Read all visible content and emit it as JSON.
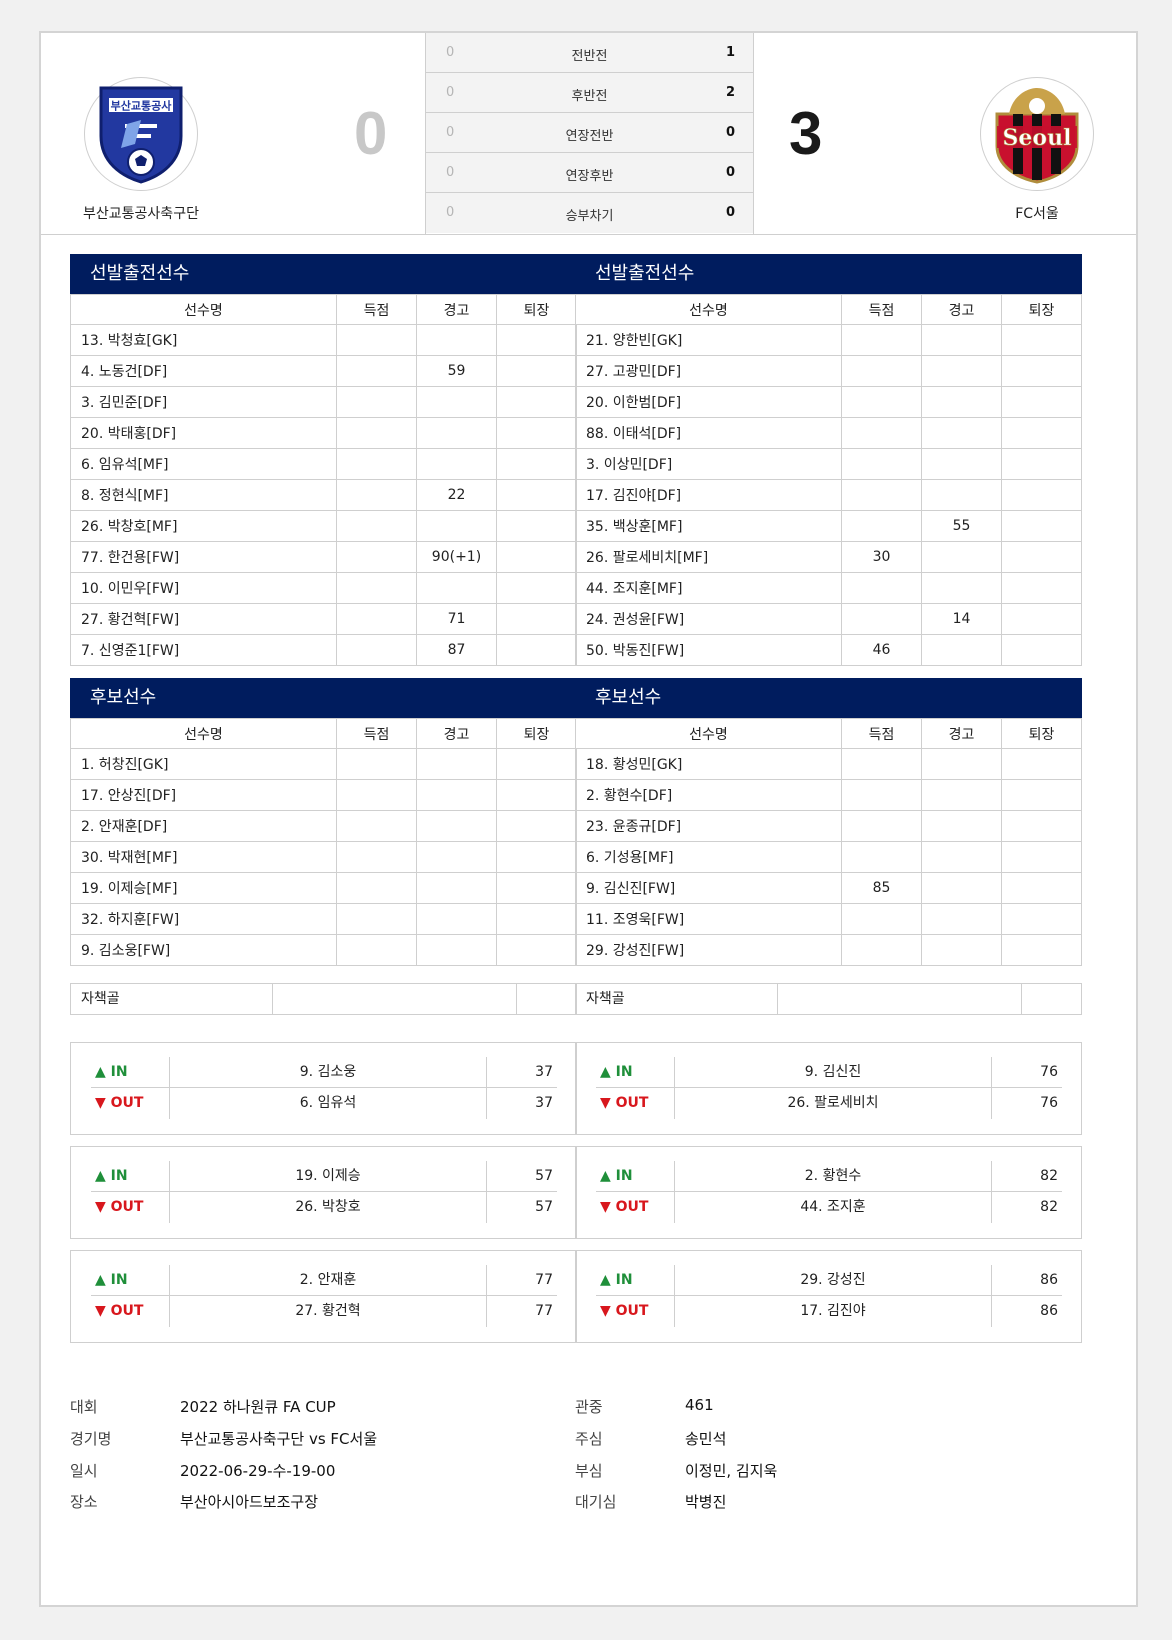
{
  "match": {
    "home": {
      "name": "부산교통공사축구단",
      "score": "0",
      "logo_text": "부산교통공사"
    },
    "away": {
      "name": "FC서울",
      "score": "3",
      "logo_text": "Seoul"
    },
    "periods": [
      {
        "label": "전반전",
        "home": "0",
        "away": "1"
      },
      {
        "label": "후반전",
        "home": "0",
        "away": "2"
      },
      {
        "label": "연장전반",
        "home": "0",
        "away": "0"
      },
      {
        "label": "연장후반",
        "home": "0",
        "away": "0"
      },
      {
        "label": "승부차기",
        "home": "0",
        "away": "0"
      }
    ]
  },
  "columns": {
    "name": "선수명",
    "goal": "득점",
    "warn": "경고",
    "sent": "퇴장"
  },
  "starters_title": "선발출전선수",
  "subs_title": "후보선수",
  "own_goal_label": "자책골",
  "home_starters": [
    {
      "name": "13. 박청효[GK]",
      "goal": "",
      "warn": "",
      "sent": ""
    },
    {
      "name": "4. 노동건[DF]",
      "goal": "",
      "warn": "59",
      "sent": ""
    },
    {
      "name": "3. 김민준[DF]",
      "goal": "",
      "warn": "",
      "sent": ""
    },
    {
      "name": "20. 박태홍[DF]",
      "goal": "",
      "warn": "",
      "sent": ""
    },
    {
      "name": "6. 임유석[MF]",
      "goal": "",
      "warn": "",
      "sent": ""
    },
    {
      "name": "8. 정현식[MF]",
      "goal": "",
      "warn": "22",
      "sent": ""
    },
    {
      "name": "26. 박창호[MF]",
      "goal": "",
      "warn": "",
      "sent": ""
    },
    {
      "name": "77. 한건용[FW]",
      "goal": "",
      "warn": "90(+1)",
      "sent": ""
    },
    {
      "name": "10. 이민우[FW]",
      "goal": "",
      "warn": "",
      "sent": ""
    },
    {
      "name": "27. 황건혁[FW]",
      "goal": "",
      "warn": "71",
      "sent": ""
    },
    {
      "name": "7. 신영준1[FW]",
      "goal": "",
      "warn": "87",
      "sent": ""
    }
  ],
  "away_starters": [
    {
      "name": "21. 양한빈[GK]",
      "goal": "",
      "warn": "",
      "sent": ""
    },
    {
      "name": "27. 고광민[DF]",
      "goal": "",
      "warn": "",
      "sent": ""
    },
    {
      "name": "20. 이한범[DF]",
      "goal": "",
      "warn": "",
      "sent": ""
    },
    {
      "name": "88. 이태석[DF]",
      "goal": "",
      "warn": "",
      "sent": ""
    },
    {
      "name": "3. 이상민[DF]",
      "goal": "",
      "warn": "",
      "sent": ""
    },
    {
      "name": "17. 김진야[DF]",
      "goal": "",
      "warn": "",
      "sent": ""
    },
    {
      "name": "35. 백상훈[MF]",
      "goal": "",
      "warn": "55",
      "sent": ""
    },
    {
      "name": "26. 팔로세비치[MF]",
      "goal": "30",
      "warn": "",
      "sent": ""
    },
    {
      "name": "44. 조지훈[MF]",
      "goal": "",
      "warn": "",
      "sent": ""
    },
    {
      "name": "24. 권성윤[FW]",
      "goal": "",
      "warn": "14",
      "sent": ""
    },
    {
      "name": "50. 박동진[FW]",
      "goal": "46",
      "warn": "",
      "sent": ""
    }
  ],
  "home_bench": [
    {
      "name": "1. 허창진[GK]",
      "goal": "",
      "warn": "",
      "sent": ""
    },
    {
      "name": "17. 안상진[DF]",
      "goal": "",
      "warn": "",
      "sent": ""
    },
    {
      "name": "2. 안재훈[DF]",
      "goal": "",
      "warn": "",
      "sent": ""
    },
    {
      "name": "30. 박재현[MF]",
      "goal": "",
      "warn": "",
      "sent": ""
    },
    {
      "name": "19. 이제승[MF]",
      "goal": "",
      "warn": "",
      "sent": ""
    },
    {
      "name": "32. 하지훈[FW]",
      "goal": "",
      "warn": "",
      "sent": ""
    },
    {
      "name": "9. 김소웅[FW]",
      "goal": "",
      "warn": "",
      "sent": ""
    }
  ],
  "away_bench": [
    {
      "name": "18. 황성민[GK]",
      "goal": "",
      "warn": "",
      "sent": ""
    },
    {
      "name": "2. 황현수[DF]",
      "goal": "",
      "warn": "",
      "sent": ""
    },
    {
      "name": "23. 윤종규[DF]",
      "goal": "",
      "warn": "",
      "sent": ""
    },
    {
      "name": "6. 기성용[MF]",
      "goal": "",
      "warn": "",
      "sent": ""
    },
    {
      "name": "9. 김신진[FW]",
      "goal": "85",
      "warn": "",
      "sent": ""
    },
    {
      "name": "11. 조영욱[FW]",
      "goal": "",
      "warn": "",
      "sent": ""
    },
    {
      "name": "29. 강성진[FW]",
      "goal": "",
      "warn": "",
      "sent": ""
    }
  ],
  "sub_labels": {
    "in": "▲ IN",
    "out": "▼ OUT"
  },
  "home_subs": [
    {
      "in_name": "9. 김소웅",
      "in_min": "37",
      "out_name": "6. 임유석",
      "out_min": "37"
    },
    {
      "in_name": "19. 이제승",
      "in_min": "57",
      "out_name": "26. 박창호",
      "out_min": "57"
    },
    {
      "in_name": "2. 안재훈",
      "in_min": "77",
      "out_name": "27. 황건혁",
      "out_min": "77"
    }
  ],
  "away_subs": [
    {
      "in_name": "9. 김신진",
      "in_min": "76",
      "out_name": "26. 팔로세비치",
      "out_min": "76"
    },
    {
      "in_name": "2. 황현수",
      "in_min": "82",
      "out_name": "44. 조지훈",
      "out_min": "82"
    },
    {
      "in_name": "29. 강성진",
      "in_min": "86",
      "out_name": "17. 김진야",
      "out_min": "86"
    }
  ],
  "info_left": [
    {
      "label": "대회",
      "value": "2022 하나원큐 FA CUP"
    },
    {
      "label": "경기명",
      "value": "부산교통공사축구단 vs FC서울"
    },
    {
      "label": "일시",
      "value": "2022-06-29-수-19-00"
    },
    {
      "label": "장소",
      "value": "부산아시아드보조구장"
    }
  ],
  "info_right": [
    {
      "label": "관중",
      "value": "461"
    },
    {
      "label": "주심",
      "value": "송민석"
    },
    {
      "label": "부심",
      "value": "이정민, 김지욱"
    },
    {
      "label": "대기심",
      "value": "박병진"
    }
  ],
  "colors": {
    "navy": "#001c5e",
    "in": "#1f8f3a",
    "out": "#d8171d"
  },
  "icons": {
    "in": "up-triangle-icon",
    "out": "down-triangle-icon"
  }
}
